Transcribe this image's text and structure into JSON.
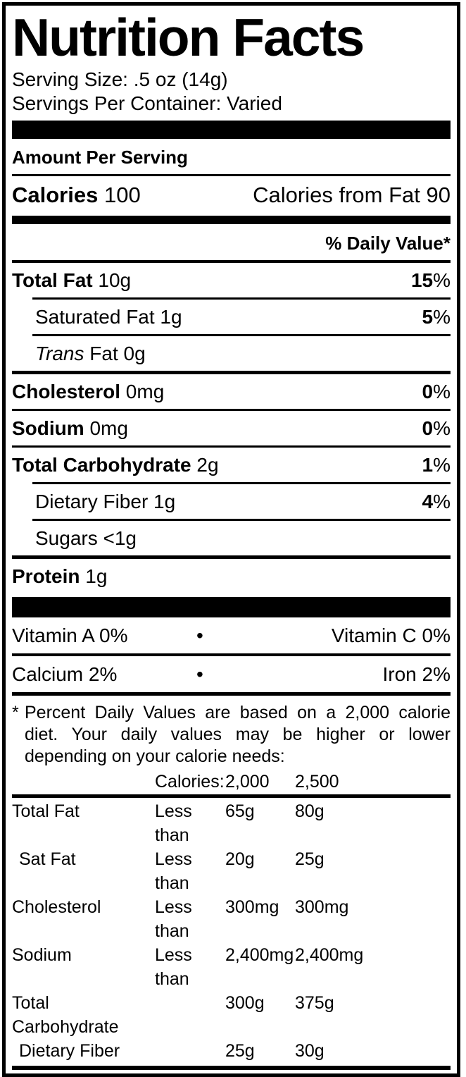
{
  "colors": {
    "ink": "#000000",
    "paper": "#ffffff"
  },
  "label": {
    "title": "Nutrition Facts",
    "serving_size": "Serving Size: .5 oz (14g)",
    "servings_per_container": "Servings Per Container: Varied",
    "amount_per_serving": "Amount Per Serving",
    "calories": {
      "label": "Calories",
      "value": "100",
      "from_fat_label": "Calories from Fat",
      "from_fat_value": "90"
    },
    "daily_value_header": "% Daily Value*",
    "percent_suffix": "%",
    "nutrients": [
      {
        "name": "Total Fat",
        "amount": "10g",
        "dv": "15",
        "bold": true,
        "sep": "thin-indent"
      },
      {
        "name": "Saturated Fat",
        "amount": "1g",
        "dv": "5",
        "indent": true,
        "sep": "thin-indent"
      },
      {
        "name": "Trans",
        "name2": " Fat",
        "amount": "0g",
        "italic": true,
        "indent": true,
        "sep": "med"
      },
      {
        "name": "Cholesterol",
        "amount": "0mg",
        "dv": "0",
        "bold": true,
        "sep": "thin"
      },
      {
        "name": "Sodium",
        "amount": "0mg",
        "dv": "0",
        "bold": true,
        "sep": "thin"
      },
      {
        "name": "Total Carbohydrate",
        "amount": "2g",
        "dv": "1",
        "bold": true,
        "sep": "thin-indent"
      },
      {
        "name": "Dietary Fiber",
        "amount": "1g",
        "dv": "4",
        "indent": true,
        "sep": "thin-indent"
      },
      {
        "name": "Sugars",
        "amount": "<1g",
        "indent": true,
        "sep": "med"
      },
      {
        "name": "Protein",
        "amount": "1g",
        "bold": true,
        "sep": "none"
      }
    ],
    "bullet": "•",
    "vitamins": {
      "rows": [
        {
          "left": "Vitamin A 0%",
          "right": "Vitamin C 0%"
        },
        {
          "left": "Calcium 2%",
          "right": "Iron 2%"
        }
      ]
    },
    "footnote": {
      "marker": "*",
      "text": "Percent Daily Values are based on a 2,000 calorie diet. Your daily values may be higher or lower depending on your calorie needs:"
    },
    "dv_table": {
      "header": [
        "",
        "Calories:",
        "2,000",
        "2,500"
      ],
      "rows": [
        {
          "cells": [
            "Total Fat",
            "Less than",
            "65g",
            "80g"
          ]
        },
        {
          "cells": [
            "Sat Fat",
            "Less than",
            "20g",
            "25g"
          ],
          "indent": true
        },
        {
          "cells": [
            "Cholesterol",
            "Less than",
            "300mg",
            "300mg"
          ]
        },
        {
          "cells": [
            "Sodium",
            "Less than",
            "2,400mg",
            "2,400mg"
          ]
        },
        {
          "cells": [
            "Total Carbohydrate",
            "",
            "300g",
            "375g"
          ]
        },
        {
          "cells": [
            "Dietary Fiber",
            "",
            "25g",
            "30g"
          ],
          "indent": true
        }
      ]
    }
  }
}
